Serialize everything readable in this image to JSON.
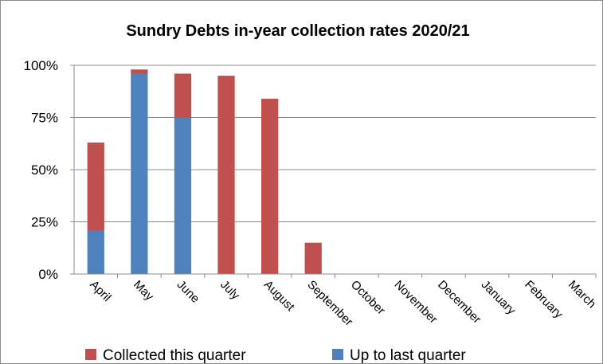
{
  "chart_data": {
    "type": "bar",
    "stacked": true,
    "title": "Sundry Debts in-year collection rates 2020/21",
    "xlabel": "",
    "ylabel": "",
    "ylim": [
      0,
      1.0
    ],
    "yticks": [
      0,
      0.25,
      0.5,
      0.75,
      1.0
    ],
    "ytick_labels": [
      "0%",
      "25%",
      "50%",
      "75%",
      "100%"
    ],
    "grid": true,
    "legend_position": "bottom",
    "categories": [
      "April",
      "May",
      "June",
      "July",
      "August",
      "September",
      "October",
      "November",
      "December",
      "January",
      "February",
      "March"
    ],
    "series": [
      {
        "name": "Up to last quarter",
        "color": "#4f81bd",
        "values": [
          0.21,
          0.96,
          0.75,
          0,
          0,
          0,
          0,
          0,
          0,
          0,
          0,
          0
        ]
      },
      {
        "name": "Collected this quarter",
        "color": "#c0504d",
        "values": [
          0.42,
          0.02,
          0.21,
          0.95,
          0.84,
          0.15,
          0,
          0,
          0,
          0,
          0,
          0
        ]
      }
    ],
    "legend_order": [
      "Collected this quarter",
      "Up to last quarter"
    ]
  }
}
